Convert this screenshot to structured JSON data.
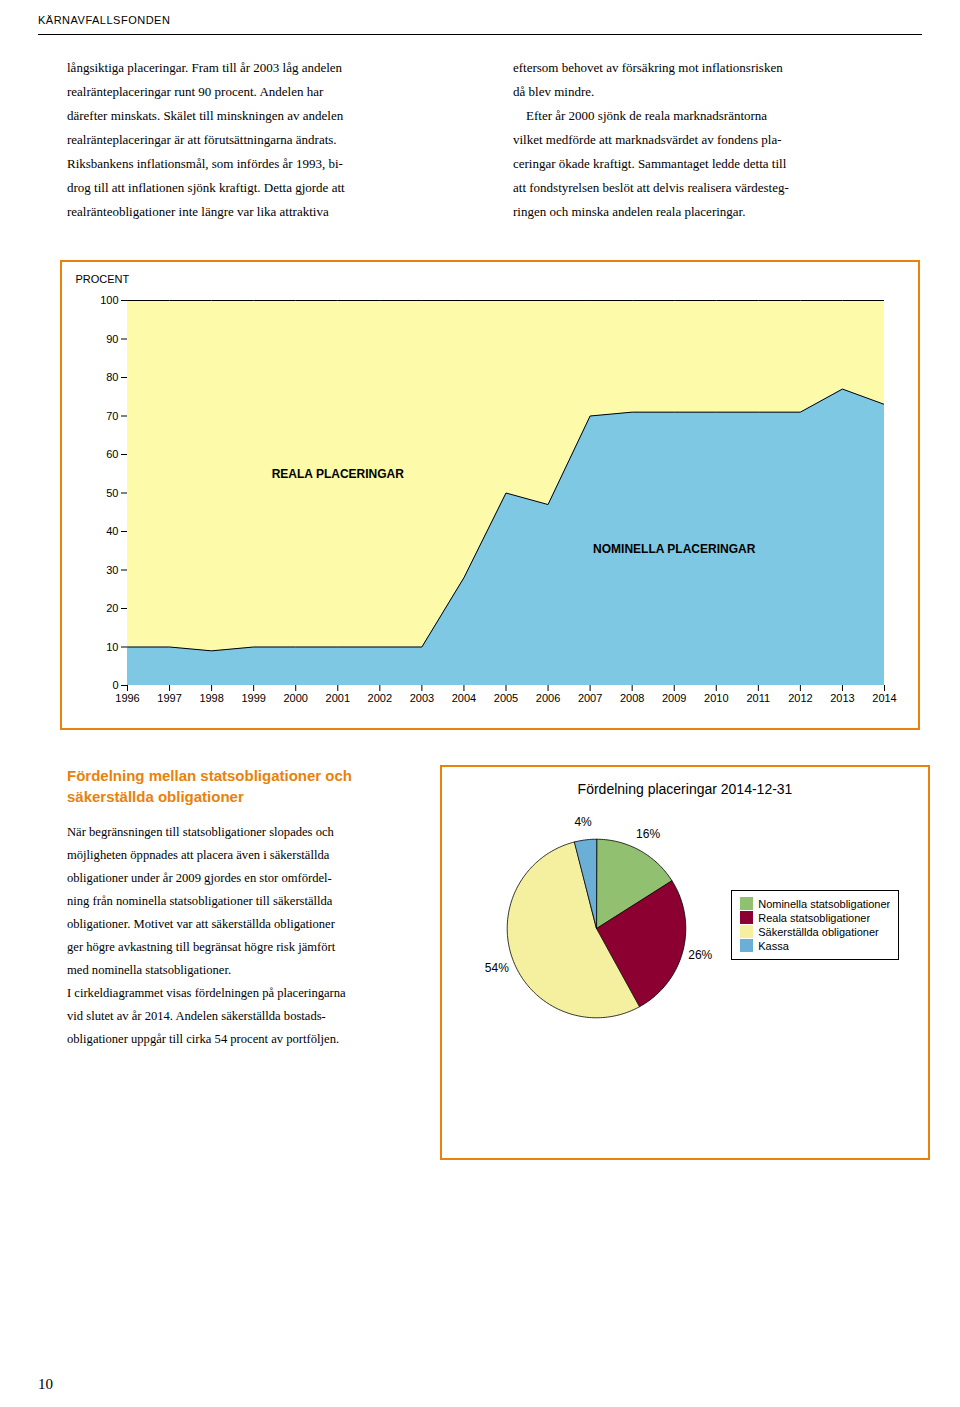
{
  "page": {
    "header": "KÄRNAVFALLSFONDEN",
    "columns": [
      "långsiktiga placeringar. Fram till år 2003 låg andelen\nrealränteplaceringar runt 90 procent. Andelen har\ndärefter minskats. Skälet till minskningen av andelen\nrealränteplaceringar är att förutsättningarna ändrats.\nRiksbankens inflationsmål, som infördes år 1993, bi-\ndrog till att inflationen sjönk kraftigt. Detta gjorde att\nrealränteobligationer inte längre var lika attraktiva",
      "eftersom behovet av försäkring mot inflationsrisken\ndå blev mindre.\n    Efter år 2000 sjönk de reala marknadsräntorna\nvilket medförde att marknadsvärdet av fondens pla-\nceringar ökade kraftigt. Sammantaget ledde detta till\natt fondstyrelsen beslöt att delvis realisera värdesteg-\nringen och minska andelen reala placeringar."
    ],
    "section_title": "Fördelning mellan statsobligationer och\nsäkerställda obligationer",
    "body": "När begränsningen till statsobligationer slopades och\nmöjligheten öppnades att placera även i säkerställda\nobligationer under år 2009 gjordes en stor omfördel-\nning från nominella statsobligationer till säkerställda\nobligationer. Motivet var att säkerställda obligationer\nger högre avkastning till begränsat högre risk jämfört\nmed nominella statsobligationer.\nI cirkeldiagrammet visas fördelningen på placeringarna\nvid slutet av år 2014. Andelen säkerställda bostads-\nobligationer uppgår till cirka 54 procent av portföljen.",
    "page_number": "10",
    "color": "#E8820A"
  },
  "chart_data": [
    {
      "type": "area",
      "x": [
        1996,
        1997,
        1998,
        1999,
        2000,
        2001,
        2002,
        2003,
        2004,
        2005,
        2006,
        2007,
        2008,
        2009,
        2010,
        2011,
        2012,
        2013,
        2014
      ],
      "xlim": [
        1996,
        2014
      ],
      "xticks": [
        1996,
        1997,
        1998,
        1999,
        2000,
        2001,
        2002,
        2003,
        2004,
        2005,
        2006,
        2007,
        2008,
        2009,
        2010,
        2011,
        2012,
        2013,
        2014
      ],
      "ylabel": "PROCENT",
      "ylim": [
        0,
        100
      ],
      "yticks": [
        0,
        10,
        20,
        30,
        40,
        50,
        60,
        70,
        80,
        90,
        100
      ],
      "stacked": true,
      "grid": false,
      "series": [
        {
          "name": "NOMINELLA PLACERINGAR",
          "color": "#7EC8E3",
          "values": [
            10,
            10,
            9,
            10,
            10,
            10,
            10,
            10,
            28,
            50,
            47,
            70,
            71,
            71,
            71,
            71,
            71,
            77,
            73
          ]
        },
        {
          "name": "REALA PLACERINGAR",
          "color": "#FDFAAA",
          "values": [
            90,
            90,
            91,
            90,
            90,
            90,
            90,
            90,
            72,
            50,
            53,
            30,
            29,
            29,
            29,
            29,
            29,
            23,
            27
          ]
        }
      ]
    },
    {
      "type": "pie",
      "title": "Fördelning placeringar 2014-12-31",
      "categories": [
        "Nominella statsobligationer",
        "Reala statsobligationer",
        "Säkerställda obligationer",
        "Kassa"
      ],
      "values": [
        16,
        26,
        54,
        4
      ],
      "colors": [
        "#90C070",
        "#8B0030",
        "#F5F0A0",
        "#6BAED6"
      ],
      "data_labels": true,
      "value_labels": [
        "16%",
        "26%",
        "54%",
        "4%"
      ],
      "legend": "right"
    }
  ]
}
